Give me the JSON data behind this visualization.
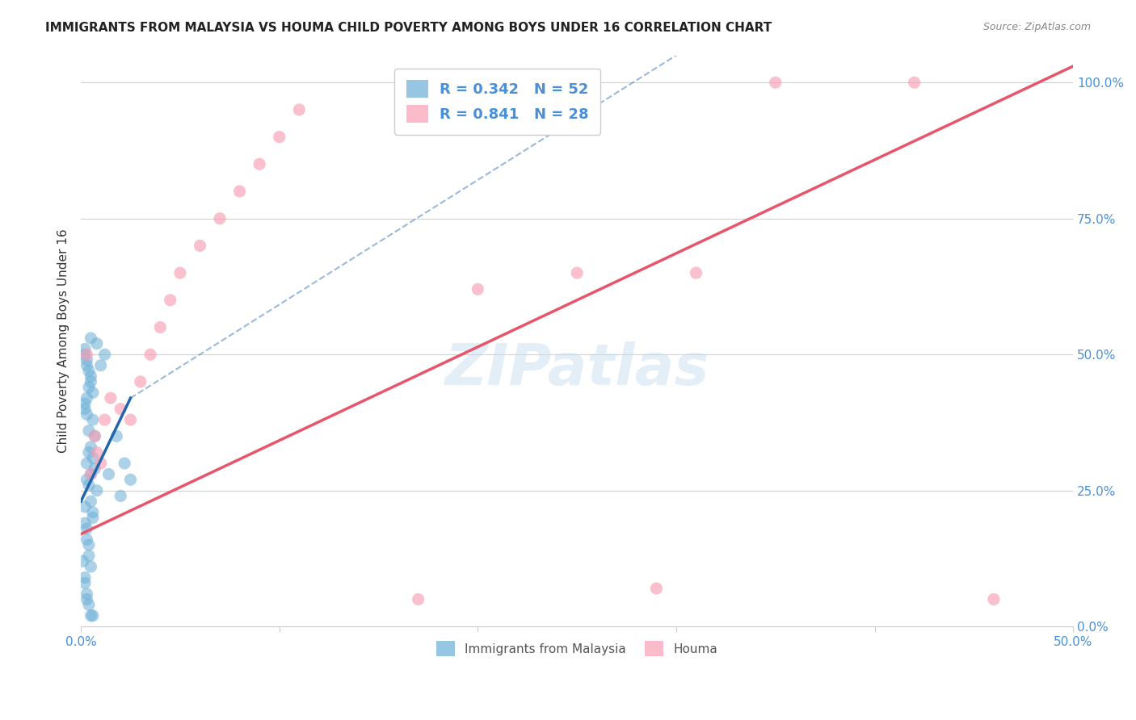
{
  "title": "IMMIGRANTS FROM MALAYSIA VS HOUMA CHILD POVERTY AMONG BOYS UNDER 16 CORRELATION CHART",
  "source": "Source: ZipAtlas.com",
  "ylabel": "Child Poverty Among Boys Under 16",
  "xlim": [
    0.0,
    0.5
  ],
  "ylim": [
    0.0,
    1.05
  ],
  "yticks": [
    0.0,
    0.25,
    0.5,
    0.75,
    1.0
  ],
  "ytick_labels": [
    "0.0%",
    "25.0%",
    "50.0%",
    "75.0%",
    "100.0%"
  ],
  "xticks": [
    0.0,
    0.1,
    0.2,
    0.3,
    0.4,
    0.5
  ],
  "xtick_labels": [
    "0.0%",
    "",
    "",
    "",
    "",
    "50.0%"
  ],
  "legend_r1": "R = 0.342   N = 52",
  "legend_r2": "R = 0.841   N = 28",
  "legend_label1": "Immigrants from Malaysia",
  "legend_label2": "Houma",
  "blue_color": "#6baed6",
  "pink_color": "#fa9fb5",
  "blue_line_color": "#2166ac",
  "pink_line_color": "#e8556a",
  "blue_scatter": [
    [
      0.005,
      0.02
    ],
    [
      0.003,
      0.05
    ],
    [
      0.002,
      0.08
    ],
    [
      0.001,
      0.12
    ],
    [
      0.004,
      0.15
    ],
    [
      0.003,
      0.18
    ],
    [
      0.006,
      0.2
    ],
    [
      0.002,
      0.22
    ],
    [
      0.008,
      0.25
    ],
    [
      0.005,
      0.28
    ],
    [
      0.003,
      0.3
    ],
    [
      0.004,
      0.32
    ],
    [
      0.007,
      0.35
    ],
    [
      0.006,
      0.38
    ],
    [
      0.002,
      0.4
    ],
    [
      0.003,
      0.42
    ],
    [
      0.004,
      0.44
    ],
    [
      0.005,
      0.46
    ],
    [
      0.003,
      0.48
    ],
    [
      0.002,
      0.5
    ],
    [
      0.006,
      0.02
    ],
    [
      0.004,
      0.04
    ],
    [
      0.003,
      0.06
    ],
    [
      0.002,
      0.09
    ],
    [
      0.005,
      0.11
    ],
    [
      0.004,
      0.13
    ],
    [
      0.003,
      0.16
    ],
    [
      0.002,
      0.19
    ],
    [
      0.006,
      0.21
    ],
    [
      0.005,
      0.23
    ],
    [
      0.004,
      0.26
    ],
    [
      0.003,
      0.27
    ],
    [
      0.007,
      0.29
    ],
    [
      0.006,
      0.31
    ],
    [
      0.005,
      0.33
    ],
    [
      0.004,
      0.36
    ],
    [
      0.003,
      0.39
    ],
    [
      0.002,
      0.41
    ],
    [
      0.006,
      0.43
    ],
    [
      0.005,
      0.45
    ],
    [
      0.004,
      0.47
    ],
    [
      0.003,
      0.49
    ],
    [
      0.002,
      0.51
    ],
    [
      0.005,
      0.53
    ],
    [
      0.01,
      0.48
    ],
    [
      0.008,
      0.52
    ],
    [
      0.012,
      0.5
    ],
    [
      0.014,
      0.28
    ],
    [
      0.018,
      0.35
    ],
    [
      0.022,
      0.3
    ],
    [
      0.025,
      0.27
    ],
    [
      0.02,
      0.24
    ]
  ],
  "pink_scatter": [
    [
      0.005,
      0.28
    ],
    [
      0.003,
      0.5
    ],
    [
      0.008,
      0.32
    ],
    [
      0.012,
      0.38
    ],
    [
      0.015,
      0.42
    ],
    [
      0.01,
      0.3
    ],
    [
      0.007,
      0.35
    ],
    [
      0.02,
      0.4
    ],
    [
      0.025,
      0.38
    ],
    [
      0.03,
      0.45
    ],
    [
      0.035,
      0.5
    ],
    [
      0.04,
      0.55
    ],
    [
      0.045,
      0.6
    ],
    [
      0.05,
      0.65
    ],
    [
      0.06,
      0.7
    ],
    [
      0.07,
      0.75
    ],
    [
      0.08,
      0.8
    ],
    [
      0.09,
      0.85
    ],
    [
      0.1,
      0.9
    ],
    [
      0.11,
      0.95
    ],
    [
      0.2,
      0.62
    ],
    [
      0.25,
      0.65
    ],
    [
      0.31,
      0.65
    ],
    [
      0.35,
      1.0
    ],
    [
      0.42,
      1.0
    ],
    [
      0.17,
      0.05
    ],
    [
      0.29,
      0.07
    ],
    [
      0.46,
      0.05
    ]
  ],
  "blue_trend_solid_x0": 0.0,
  "blue_trend_solid_y0": 0.23,
  "blue_trend_solid_x1": 0.025,
  "blue_trend_solid_y1": 0.42,
  "blue_trend_dash_x1": 0.3,
  "blue_trend_dash_y1": 1.05,
  "pink_trend_x0": 0.0,
  "pink_trend_y0": 0.17,
  "pink_trend_x1": 0.5,
  "pink_trend_y1": 1.03,
  "watermark": "ZIPatlas",
  "background_color": "#ffffff",
  "grid_color": "#d0d0d0"
}
